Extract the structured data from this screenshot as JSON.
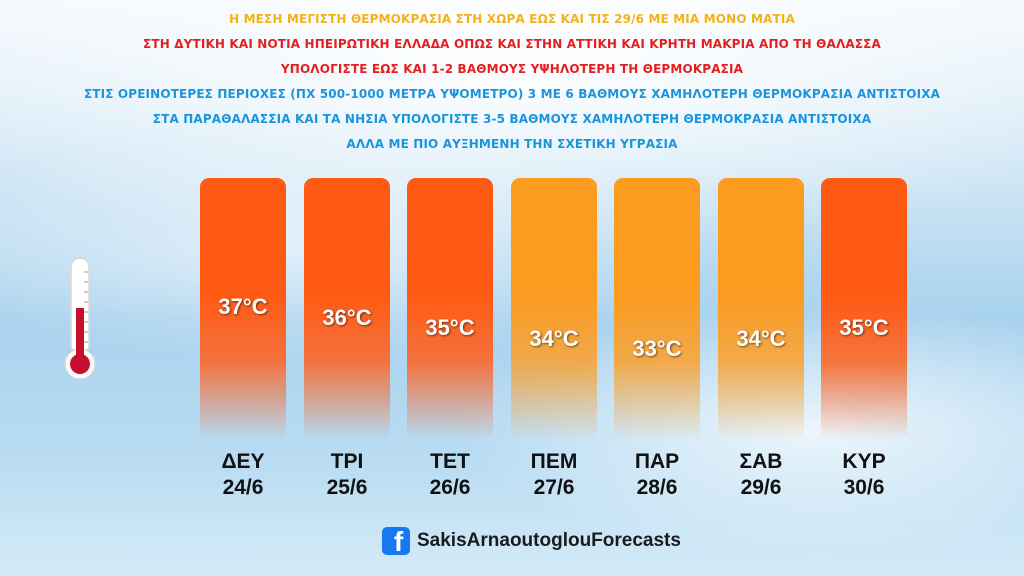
{
  "headlines": [
    {
      "text": "Η ΜΕΣΗ ΜΕΓΙΣΤΗ ΘΕΡΜΟΚΡΑΣΙΑ ΣΤΗ ΧΩΡΑ ΕΩΣ ΚΑΙ ΤΙΣ 29/6 ΜΕ ΜΙΑ ΜΟΝΟ ΜΑΤΙΑ",
      "color": "#f3b21a"
    },
    {
      "text": "ΣΤΗ ΔΥΤΙΚΗ ΚΑΙ ΝΟΤΙΑ ΗΠΕΙΡΩΤΙΚΗ ΕΛΛΑΔΑ ΟΠΩΣ ΚΑΙ ΣΤΗΝ ΑΤΤΙΚΗ ΚΑΙ ΚΡΗΤΗ ΜΑΚΡΙΑ ΑΠΟ ΤΗ ΘΑΛΑΣΣΑ",
      "color": "#e41f1f"
    },
    {
      "text": "ΥΠΟΛΟΓΙΣΤΕ ΕΩΣ ΚΑΙ 1-2 ΒΑΘΜΟΥΣ ΥΨΗΛΟΤΕΡΗ ΤΗ ΘΕΡΜΟΚΡΑΣΙΑ",
      "color": "#e41f1f"
    },
    {
      "text": "ΣΤΙΣ ΟΡΕΙΝΟΤΕΡΕΣ ΠΕΡΙΟΧΕΣ (ΠΧ 500-1000 ΜΕΤΡΑ ΥΨΟΜΕΤΡΟ) 3 ΜΕ 6 ΒΑΘΜΟΥΣ ΧΑΜΗΛΟΤΕΡΗ ΘΕΡΜΟΚΡΑΣΙΑ ΑΝΤΙΣΤΟΙΧΑ",
      "color": "#1a95dd"
    },
    {
      "text": "ΣΤΑ ΠΑΡΑΘΑΛΑΣΣΙΑ ΚΑΙ ΤΑ ΝΗΣΙΑ ΥΠΟΛΟΓΙΣΤΕ 3-5 ΒΑΘΜΟΥΣ ΧΑΜΗΛΟΤΕΡΗ ΘΕΡΜΟΚΡΑΣΙΑ ΑΝΤΙΣΤΟΙΧΑ",
      "color": "#1a95dd"
    },
    {
      "text": "ΑΛΛΑ ΜΕ ΠΙΟ ΑΥΞΗΜΕΝΗ ΤΗΝ ΣΧΕΤΙΚΗ ΥΓΡΑΣΙΑ",
      "color": "#1a95dd"
    }
  ],
  "forecast": [
    {
      "day": "ΔΕΥ",
      "date": "24/6",
      "temp_label": "37°C",
      "temp": 37,
      "color": "#ff5a14"
    },
    {
      "day": "ΤΡΙ",
      "date": "25/6",
      "temp_label": "36°C",
      "temp": 36,
      "color": "#ff5a14"
    },
    {
      "day": "ΤΕΤ",
      "date": "26/6",
      "temp_label": "35°C",
      "temp": 35,
      "color": "#ff5a14"
    },
    {
      "day": "ΠΕΜ",
      "date": "27/6",
      "temp_label": "34°C",
      "temp": 34,
      "color": "#fb9b20"
    },
    {
      "day": "ΠΑΡ",
      "date": "28/6",
      "temp_label": "33°C",
      "temp": 33,
      "color": "#fb9b20"
    },
    {
      "day": "ΣΑΒ",
      "date": "29/6",
      "temp_label": "34°C",
      "temp": 34,
      "color": "#fb9b20"
    },
    {
      "day": "ΚΥΡ",
      "date": "30/6",
      "temp_label": "35°C",
      "temp": 35,
      "color": "#ff5a14"
    }
  ],
  "icons": {
    "thermometer": "thermometer-icon",
    "facebook": "facebook-icon"
  },
  "footer": {
    "page_name": "SakisArnaoutoglouForecasts",
    "fb_glyph": "f"
  }
}
